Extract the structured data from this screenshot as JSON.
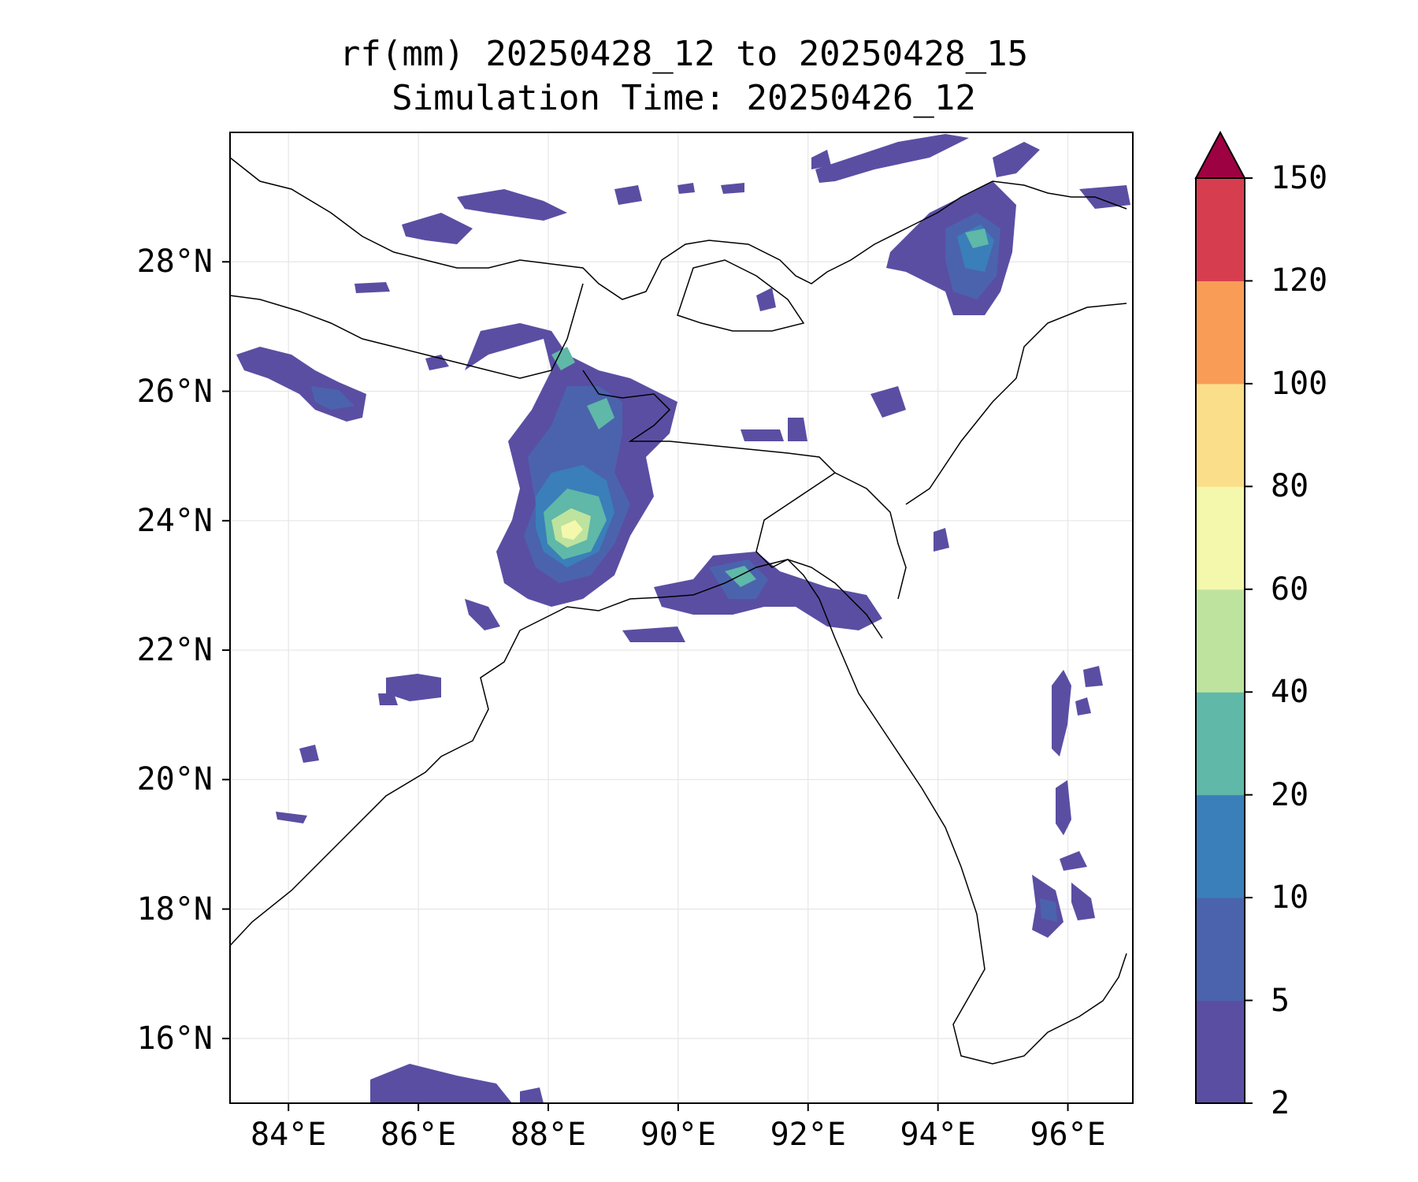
{
  "title": {
    "line1": "rf(mm) 20250428_12 to 20250428_15",
    "line2": "Simulation Time: 20250426_12"
  },
  "axes": {
    "lon_ticks": [
      "84°E",
      "86°E",
      "88°E",
      "90°E",
      "92°E",
      "94°E",
      "96°E"
    ],
    "lat_ticks": [
      "28°N",
      "26°N",
      "24°N",
      "22°N",
      "20°N",
      "18°N",
      "16°N"
    ],
    "lon_range": [
      83.1,
      97.0
    ],
    "lat_range": [
      15.0,
      30.0
    ],
    "grid": true
  },
  "colorbar": {
    "levels": [
      "2",
      "5",
      "10",
      "20",
      "40",
      "60",
      "80",
      "100",
      "120",
      "150"
    ],
    "colors": [
      "#5a4ea3",
      "#4b63ad",
      "#3a7fb9",
      "#5fb8a8",
      "#bde39e",
      "#f3f8ad",
      "#fbde8a",
      "#f99d56",
      "#d63e4f",
      "#9e0142"
    ],
    "extend": "max"
  },
  "colors": {
    "coastline": "#000000",
    "grid": "#e6e6e6"
  }
}
